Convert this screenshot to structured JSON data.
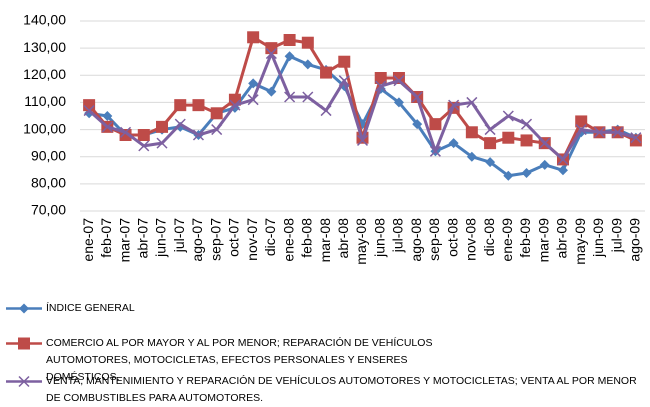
{
  "chart_data": {
    "type": "line",
    "categories": [
      "ene-07",
      "feb-07",
      "mar-07",
      "abr-07",
      "jun-07",
      "jul-07",
      "ago-07",
      "sep-07",
      "oct-07",
      "nov-07",
      "dic-07",
      "ene-08",
      "feb-08",
      "mar-08",
      "abr-08",
      "may-08",
      "jun-08",
      "jul-08",
      "ago-08",
      "sep-08",
      "oct-08",
      "nov-08",
      "dic-08",
      "ene-09",
      "feb-09",
      "mar-09",
      "abr-09",
      "may-09",
      "jun-09",
      "jul-09",
      "ago-09"
    ],
    "ylim": [
      70,
      140
    ],
    "yticks": [
      {
        "value": 70,
        "label": "70,00"
      },
      {
        "value": 80,
        "label": "80,00"
      },
      {
        "value": 90,
        "label": "90,00"
      },
      {
        "value": 100,
        "label": "100,00"
      },
      {
        "value": 110,
        "label": "110,00"
      },
      {
        "value": 120,
        "label": "120,00"
      },
      {
        "value": 130,
        "label": "130,00"
      },
      {
        "value": 140,
        "label": "140,00"
      }
    ],
    "grid": true,
    "series": [
      {
        "name": "ÍNDICE GENERAL",
        "color": "#4a7ebb",
        "marker": "diamond",
        "values": [
          106,
          105,
          98,
          98,
          100,
          101,
          98,
          106,
          108,
          117,
          114,
          127,
          124,
          122,
          116,
          102,
          115,
          110,
          102,
          92,
          95,
          90,
          88,
          83,
          84,
          87,
          85,
          99,
          99,
          100,
          97
        ]
      },
      {
        "name": "COMERCIO AL POR MAYOR Y AL POR MENOR; REPARACIÓN DE VEHÍCULOS AUTOMOTORES, MOTOCICLETAS, EFECTOS PERSONALES Y ENSERES DOMÉSTICOS.",
        "color": "#be4b48",
        "marker": "square",
        "values": [
          109,
          101,
          98,
          98,
          101,
          109,
          109,
          106,
          111,
          134,
          130,
          133,
          132,
          121,
          125,
          97,
          119,
          119,
          112,
          102,
          108,
          99,
          95,
          97,
          96,
          95,
          89,
          103,
          99,
          99,
          96
        ]
      },
      {
        "name": "VENTA, MANTENIMIENTO Y REPARACIÓN DE VEHÍCULOS AUTOMOTORES Y MOTOCICLETAS; VENTA AL POR MENOR DE COMBUSTIBLES PARA AUTOMOTORES.",
        "color": "#7d60a0",
        "marker": "x",
        "values": [
          107,
          101,
          99,
          94,
          95,
          102,
          98,
          100,
          109,
          111,
          128,
          112,
          112,
          107,
          118,
          96,
          116,
          118,
          112,
          92,
          109,
          110,
          100,
          105,
          102,
          95,
          89,
          100,
          99,
          99,
          97
        ]
      }
    ]
  }
}
